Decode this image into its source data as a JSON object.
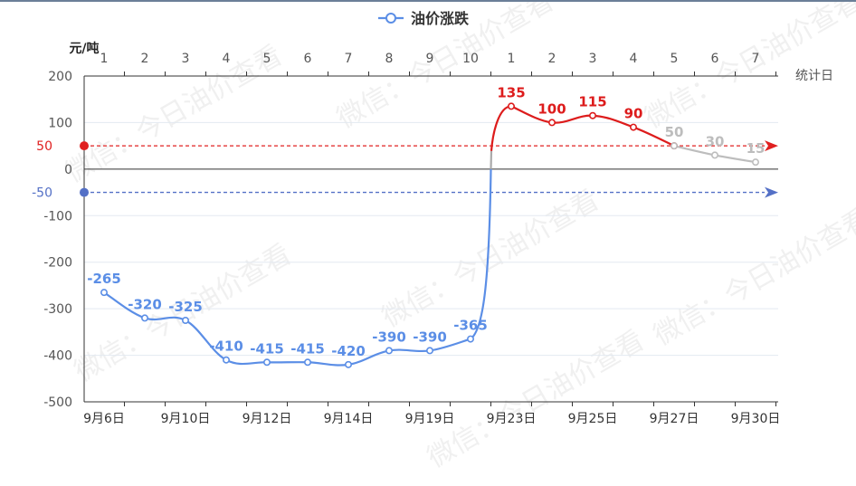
{
  "legend": {
    "label": "油价涨跌"
  },
  "chart_data": {
    "type": "line",
    "legend_placement": "top-center",
    "ylabel": "元/吨",
    "top_axis_label": "统计日",
    "ylim": [
      -500,
      200
    ],
    "yticks": [
      "200",
      "100",
      "0",
      "-100",
      "-200",
      "-300",
      "-400",
      "-500"
    ],
    "reference_lines": [
      {
        "value": 50,
        "label": "50",
        "color": "#e02020"
      },
      {
        "value": -50,
        "label": "-50",
        "color": "#5470c6"
      }
    ],
    "top_ticks": [
      "1",
      "2",
      "3",
      "4",
      "5",
      "6",
      "7",
      "8",
      "9",
      "10",
      "1",
      "2",
      "3",
      "4",
      "5",
      "6",
      "7"
    ],
    "bottom_labels": [
      {
        "index": 0,
        "label": "9月6日"
      },
      {
        "index": 2,
        "label": "9月10日"
      },
      {
        "index": 4,
        "label": "9月12日"
      },
      {
        "index": 6,
        "label": "9月14日"
      },
      {
        "index": 8,
        "label": "9月19日"
      },
      {
        "index": 10,
        "label": "9月23日"
      },
      {
        "index": 12,
        "label": "9月25日"
      },
      {
        "index": 14,
        "label": "9月27日"
      },
      {
        "index": 16,
        "label": "9月30日"
      }
    ],
    "series": [
      {
        "name": "油价涨跌",
        "x": [
          0,
          1,
          2,
          3,
          4,
          5,
          6,
          7,
          8,
          9
        ],
        "values": [
          -265,
          -320,
          -325,
          -410,
          -415,
          -415,
          -420,
          -390,
          -390,
          -365
        ],
        "labels": [
          "-265",
          "-320",
          "-325",
          "-410",
          "-415",
          "-415",
          "-420",
          "-390",
          "-390",
          "-365"
        ],
        "color": "#5b8ee6"
      },
      {
        "x": [
          10,
          11,
          12,
          13,
          14
        ],
        "values": [
          135,
          100,
          115,
          90,
          50
        ],
        "labels": [
          "135",
          "100",
          "115",
          "90",
          ""
        ],
        "color": "#dd1c1c"
      },
      {
        "x": [
          14,
          15,
          16
        ],
        "values": [
          50,
          30,
          15
        ],
        "labels": [
          "50",
          "30",
          "15"
        ],
        "color": "#bdbdbd"
      }
    ]
  },
  "watermark": {
    "text": "微信：今日油价查看"
  },
  "colors": {
    "axis": "#333333",
    "grid": "#e3e9f1",
    "tick_text": "#555555",
    "blue": "#5b8ee6",
    "red": "#dd1c1c",
    "gray": "#bdbdbd"
  }
}
